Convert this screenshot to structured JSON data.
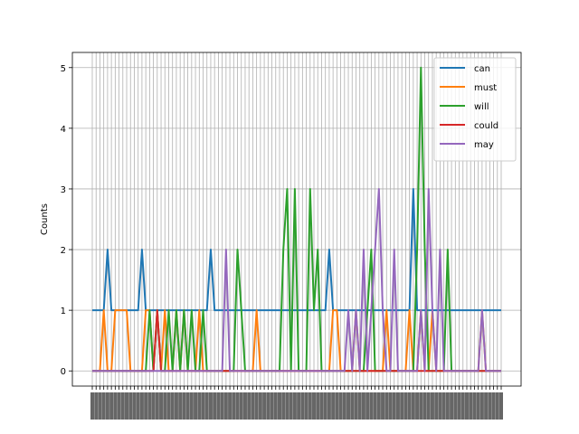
{
  "chart_data": {
    "type": "line",
    "title": "",
    "xlabel": "",
    "ylabel": "Counts",
    "ylim": [
      -0.25,
      5.25
    ],
    "yticks": [
      0,
      1,
      2,
      3,
      4,
      5
    ],
    "grid": true,
    "legend_position": "upper-right",
    "x_tick_labels_note": "rotated, unreadable",
    "n_points": 108,
    "series": [
      {
        "name": "can",
        "color": "#1f77b4",
        "values": [
          1,
          1,
          1,
          1,
          2,
          1,
          1,
          1,
          1,
          1,
          1,
          1,
          1,
          2,
          1,
          1,
          1,
          1,
          1,
          1,
          1,
          1,
          1,
          1,
          1,
          1,
          1,
          1,
          1,
          1,
          1,
          2,
          1,
          1,
          1,
          1,
          1,
          1,
          1,
          1,
          1,
          1,
          1,
          1,
          1,
          1,
          1,
          1,
          1,
          1,
          1,
          1,
          1,
          1,
          1,
          1,
          1,
          1,
          1,
          1,
          1,
          1,
          2,
          1,
          1,
          1,
          1,
          1,
          1,
          1,
          1,
          1,
          1,
          1,
          1,
          1,
          1,
          1,
          1,
          1,
          1,
          1,
          1,
          1,
          3,
          1,
          1,
          1,
          1,
          1,
          1,
          1,
          1,
          1,
          1,
          1,
          1,
          1,
          1,
          1,
          1,
          1,
          1,
          1,
          1,
          1,
          1,
          1
        ]
      },
      {
        "name": "must",
        "color": "#ff7f0e",
        "values": [
          0,
          0,
          0,
          1,
          0,
          0,
          1,
          1,
          1,
          1,
          0,
          0,
          0,
          0,
          1,
          1,
          0,
          1,
          0,
          1,
          0,
          0,
          1,
          0,
          1,
          0,
          0,
          0,
          1,
          0,
          0,
          0,
          0,
          0,
          0,
          0,
          0,
          0,
          0,
          0,
          0,
          0,
          0,
          1,
          0,
          0,
          0,
          0,
          0,
          0,
          0,
          0,
          0,
          0,
          0,
          0,
          0,
          0,
          0,
          0,
          0,
          0,
          0,
          1,
          1,
          0,
          0,
          0,
          0,
          1,
          0,
          0,
          0,
          0,
          0,
          0,
          0,
          1,
          0,
          0,
          0,
          0,
          0,
          1,
          0,
          0,
          1,
          0,
          0,
          1,
          0,
          0,
          0,
          0,
          0,
          0,
          0,
          0,
          0,
          0,
          0,
          0,
          1,
          0,
          0,
          0,
          0,
          0
        ]
      },
      {
        "name": "will",
        "color": "#2ca02c",
        "values": [
          0,
          0,
          0,
          0,
          0,
          0,
          0,
          0,
          0,
          0,
          0,
          0,
          0,
          0,
          0,
          1,
          0,
          1,
          0,
          0,
          1,
          0,
          1,
          0,
          1,
          0,
          1,
          0,
          0,
          1,
          0,
          0,
          0,
          0,
          0,
          0,
          0,
          0,
          2,
          1,
          0,
          0,
          0,
          0,
          0,
          0,
          0,
          0,
          0,
          0,
          2,
          3,
          0,
          3,
          0,
          0,
          0,
          3,
          1,
          2,
          0,
          0,
          0,
          0,
          0,
          0,
          0,
          0,
          0,
          0,
          0,
          0,
          1,
          2,
          0,
          0,
          0,
          0,
          0,
          0,
          0,
          0,
          0,
          0,
          0,
          2,
          5,
          2,
          0,
          0,
          0,
          0,
          0,
          2,
          0,
          0,
          0,
          0,
          0,
          0,
          0,
          0,
          0,
          0,
          0,
          0,
          0,
          0
        ]
      },
      {
        "name": "could",
        "color": "#d62728",
        "values": [
          0,
          0,
          0,
          0,
          0,
          0,
          0,
          0,
          0,
          0,
          0,
          0,
          0,
          0,
          0,
          0,
          0,
          1,
          0,
          0,
          0,
          0,
          0,
          0,
          0,
          0,
          0,
          0,
          0,
          0,
          0,
          0,
          0,
          0,
          0,
          0,
          0,
          0,
          0,
          0,
          0,
          0,
          0,
          0,
          0,
          0,
          0,
          0,
          0,
          0,
          0,
          0,
          0,
          0,
          0,
          0,
          0,
          0,
          0,
          0,
          0,
          0,
          0,
          0,
          0,
          0,
          0,
          0,
          0,
          0,
          0,
          0,
          0,
          0,
          0,
          0,
          0,
          0,
          0,
          0,
          0,
          0,
          0,
          0,
          0,
          0,
          0,
          0,
          0,
          0,
          0,
          0,
          0,
          0,
          0,
          0,
          0,
          0,
          0,
          0,
          0,
          0,
          0,
          0,
          0,
          0,
          0,
          0
        ]
      },
      {
        "name": "may",
        "color": "#9467bd",
        "values": [
          0,
          0,
          0,
          0,
          0,
          0,
          0,
          0,
          0,
          0,
          0,
          0,
          0,
          0,
          0,
          0,
          0,
          0,
          0,
          0,
          0,
          0,
          0,
          0,
          0,
          0,
          0,
          0,
          0,
          0,
          0,
          0,
          0,
          0,
          0,
          2,
          0,
          0,
          0,
          0,
          0,
          0,
          0,
          0,
          0,
          0,
          0,
          0,
          0,
          0,
          0,
          0,
          0,
          0,
          0,
          0,
          0,
          0,
          0,
          0,
          0,
          0,
          0,
          0,
          0,
          0,
          0,
          1,
          0,
          1,
          0,
          2,
          0,
          1,
          2,
          3,
          1,
          0,
          0,
          2,
          0,
          0,
          0,
          0,
          0,
          0,
          1,
          0,
          3,
          1,
          0,
          2,
          0,
          0,
          0,
          0,
          0,
          0,
          0,
          0,
          0,
          0,
          1,
          0,
          0,
          0,
          0,
          0
        ]
      }
    ]
  }
}
